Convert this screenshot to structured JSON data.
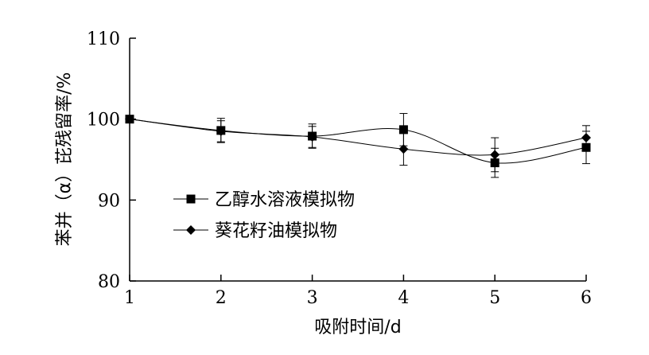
{
  "chart_data": {
    "type": "line",
    "xlabel": "吸附时间/d",
    "ylabel": "苯并（α）芘残留率/%",
    "x": [
      1,
      2,
      3,
      4,
      5,
      6
    ],
    "xlim": [
      1,
      6
    ],
    "ylim": [
      80,
      110
    ],
    "yticks": [
      80,
      90,
      100,
      110
    ],
    "grid": false,
    "legend_position": "center-left",
    "series": [
      {
        "name": "乙醇水溶液模拟物",
        "marker": "square",
        "values": [
          100.0,
          98.6,
          97.9,
          98.7,
          94.6,
          96.5
        ],
        "errors": [
          0,
          1.5,
          1.5,
          2.0,
          1.8,
          2.0
        ]
      },
      {
        "name": "葵花籽油模拟物",
        "marker": "diamond",
        "values": [
          100.0,
          98.5,
          97.8,
          96.3,
          95.6,
          97.7
        ],
        "errors": [
          0,
          1.3,
          1.3,
          2.0,
          2.1,
          1.5
        ]
      }
    ]
  }
}
